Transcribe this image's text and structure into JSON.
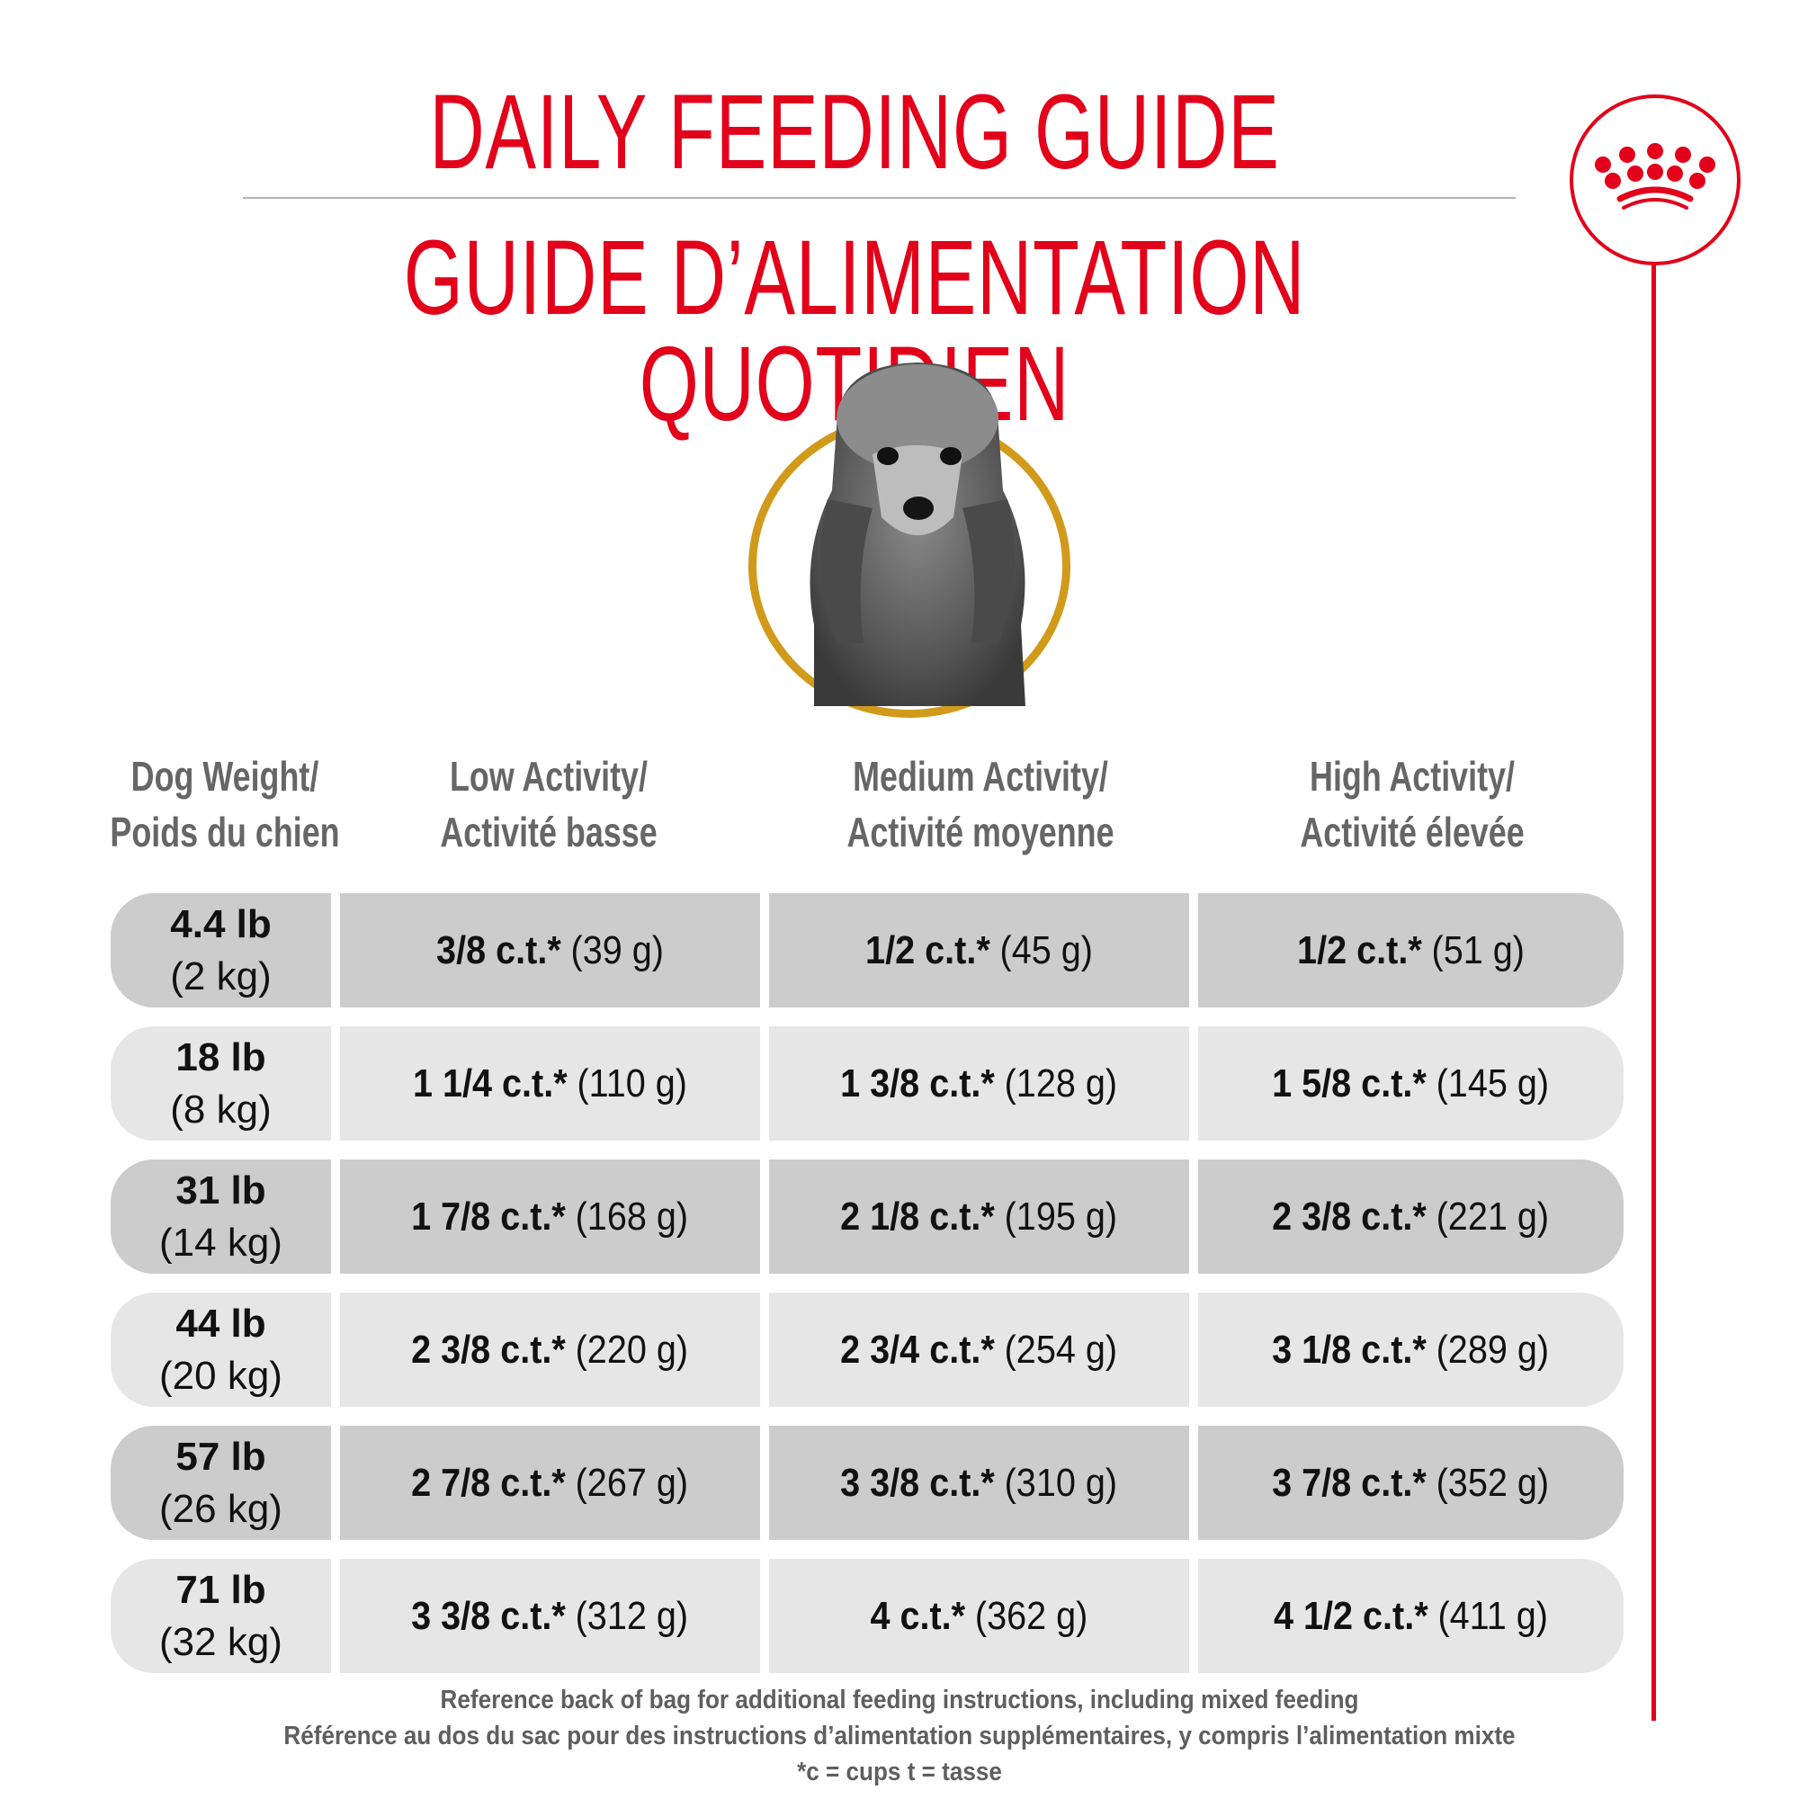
{
  "header": {
    "title_en": "DAILY FEEDING GUIDE",
    "title_fr": "GUIDE D’ALIMENTATION QUOTIDIEN"
  },
  "brand": {
    "logo_icon": "crown-icon",
    "accent_color": "#E2001A",
    "ring_color": "#D19A1A"
  },
  "image": {
    "subject": "poodle-photo"
  },
  "table": {
    "columns": [
      {
        "en": "Dog Weight/",
        "fr": "Poids du chien"
      },
      {
        "en": "Low Activity/",
        "fr": "Activité basse"
      },
      {
        "en": "Medium Activity/",
        "fr": "Activité moyenne"
      },
      {
        "en": "High Activity/",
        "fr": "Activité élevée"
      }
    ],
    "rows": [
      {
        "lb": "4.4 lb",
        "kg": "(2 kg)",
        "low": {
          "amount": "3/8 c.t.*",
          "grams": "(39 g)"
        },
        "medium": {
          "amount": "1/2 c.t.*",
          "grams": "(45 g)"
        },
        "high": {
          "amount": "1/2 c.t.*",
          "grams": "(51 g)"
        }
      },
      {
        "lb": "18 lb",
        "kg": "(8 kg)",
        "low": {
          "amount": "1 1/4 c.t.*",
          "grams": "(110 g)"
        },
        "medium": {
          "amount": "1 3/8 c.t.*",
          "grams": "(128 g)"
        },
        "high": {
          "amount": "1 5/8 c.t.*",
          "grams": "(145 g)"
        }
      },
      {
        "lb": "31 lb",
        "kg": "(14 kg)",
        "low": {
          "amount": "1 7/8 c.t.*",
          "grams": "(168 g)"
        },
        "medium": {
          "amount": "2 1/8 c.t.*",
          "grams": "(195 g)"
        },
        "high": {
          "amount": "2 3/8 c.t.*",
          "grams": "(221 g)"
        }
      },
      {
        "lb": "44 lb",
        "kg": "(20 kg)",
        "low": {
          "amount": "2 3/8 c.t.*",
          "grams": "(220 g)"
        },
        "medium": {
          "amount": "2 3/4 c.t.*",
          "grams": "(254 g)"
        },
        "high": {
          "amount": "3 1/8 c.t.*",
          "grams": "(289 g)"
        }
      },
      {
        "lb": "57 lb",
        "kg": "(26 kg)",
        "low": {
          "amount": "2 7/8 c.t.*",
          "grams": "(267 g)"
        },
        "medium": {
          "amount": "3 3/8 c.t.*",
          "grams": "(310 g)"
        },
        "high": {
          "amount": "3 7/8 c.t.*",
          "grams": "(352 g)"
        }
      },
      {
        "lb": "71 lb",
        "kg": "(32 kg)",
        "low": {
          "amount": "3 3/8 c.t.*",
          "grams": "(312 g)"
        },
        "medium": {
          "amount": "4 c.t.*",
          "grams": "(362 g)"
        },
        "high": {
          "amount": "4 1/2 c.t.*",
          "grams": "(411 g)"
        }
      }
    ]
  },
  "footer": {
    "line_en": "Reference back of bag for additional feeding instructions, including mixed feeding",
    "line_fr": "Référence au dos du sac pour des instructions d’alimentation supplémentaires, y compris l’alimentation mixte",
    "legend": "*c = cups t = tasse"
  }
}
